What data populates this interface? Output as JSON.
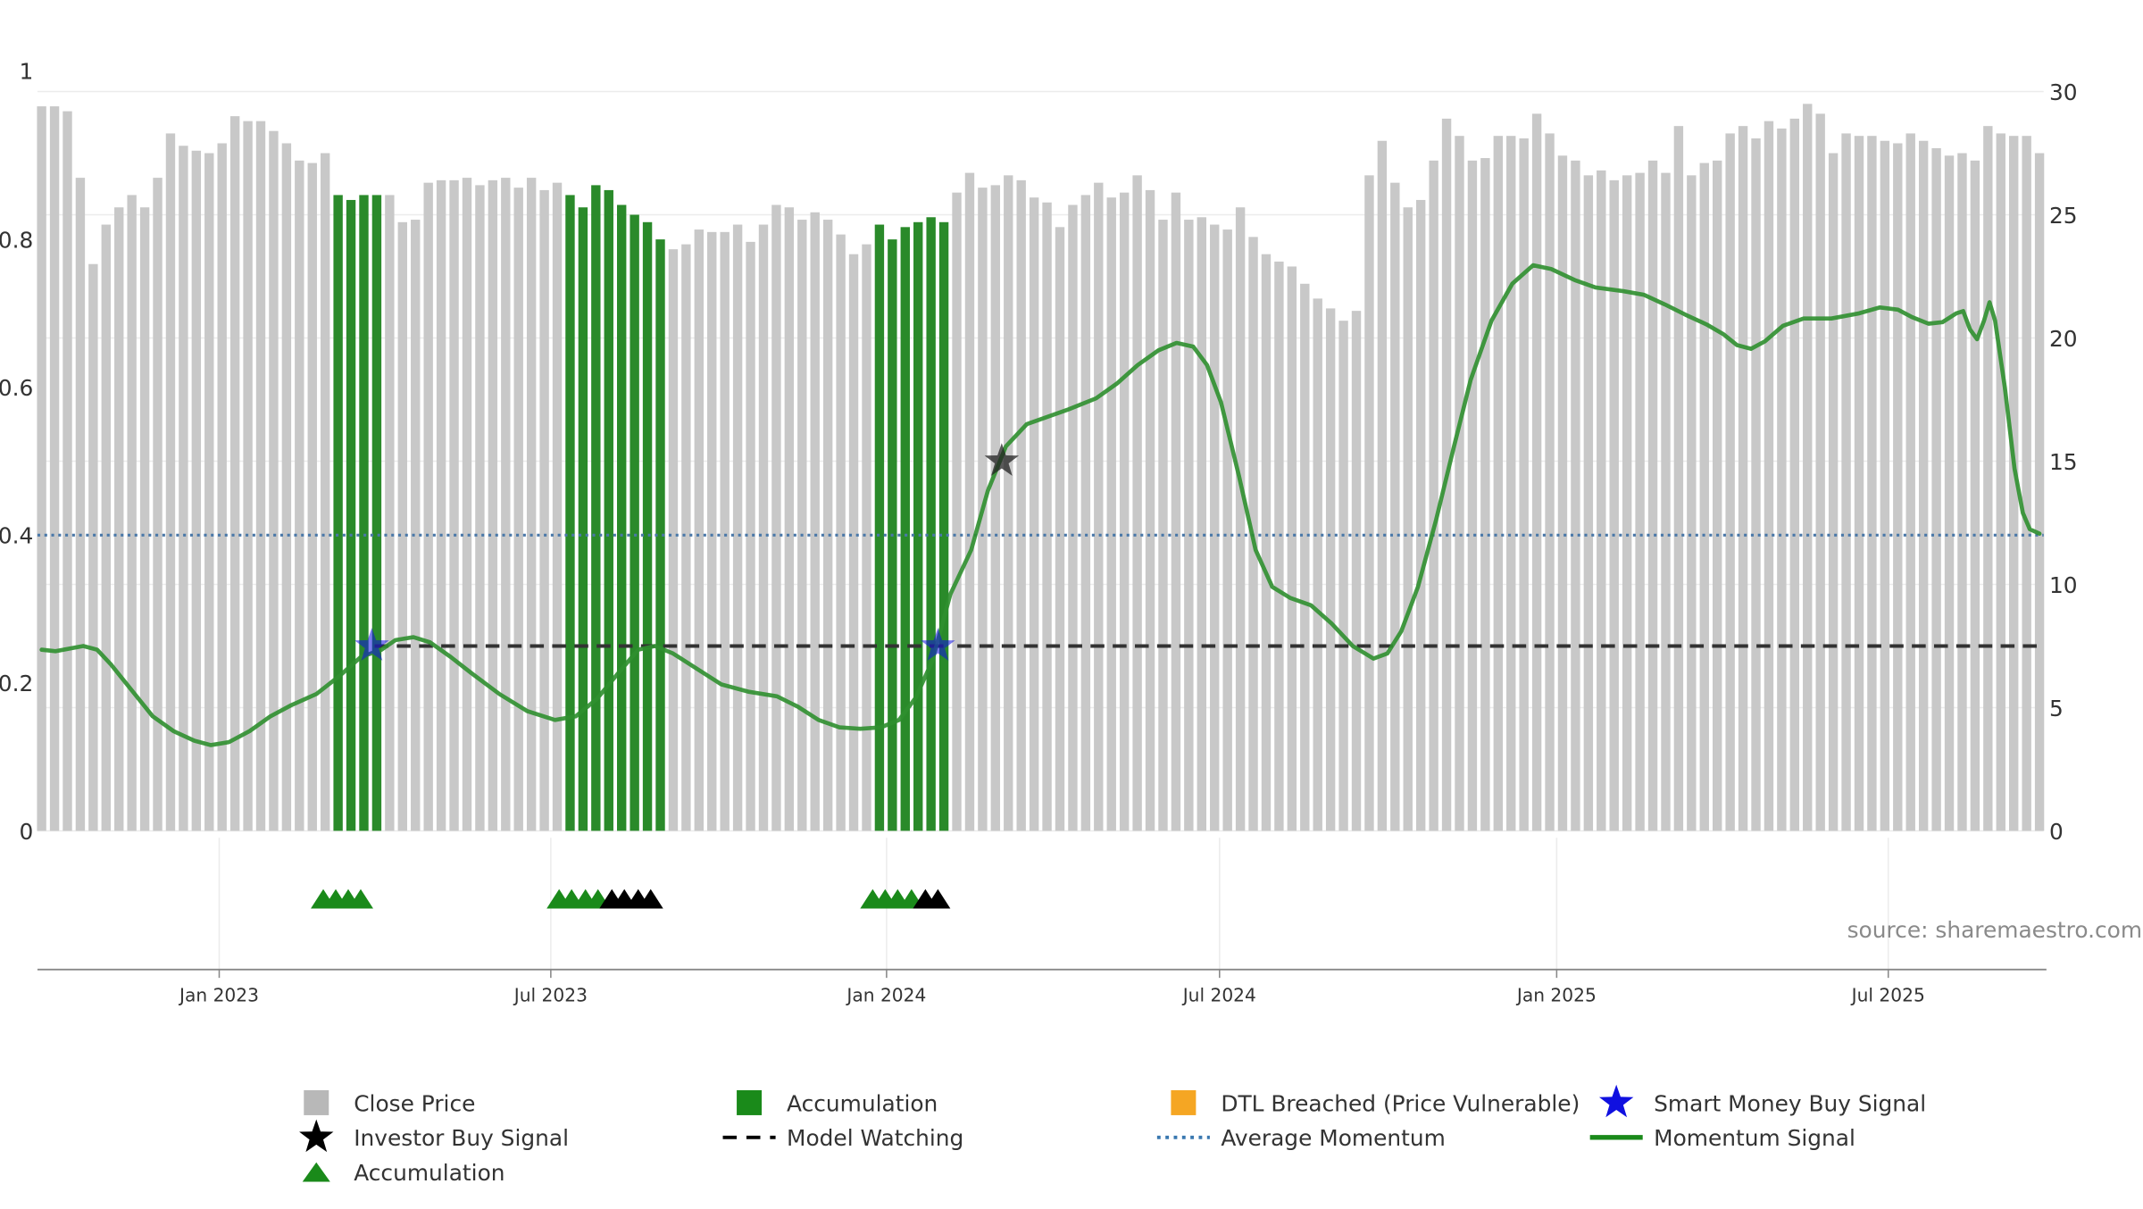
{
  "source_note": "source: sharemaestro.com",
  "chart_data": {
    "type": "bar",
    "title": "",
    "left_axis": {
      "range": [
        0,
        1
      ],
      "ticks": [
        0,
        0.2,
        0.4,
        0.6,
        0.8
      ],
      "tick_labels": [
        "0",
        "0.2",
        "0.4",
        "0.6",
        "0.8"
      ],
      "top_label": "1"
    },
    "right_axis": {
      "range": [
        0,
        30
      ],
      "ticks": [
        0,
        5,
        10,
        15,
        20,
        25,
        30
      ],
      "tick_labels": [
        "0",
        "5",
        "10",
        "15",
        "20",
        "25",
        "30"
      ]
    },
    "x_ticks": [
      "Jan 2023",
      "Jul 2023",
      "Jan 2024",
      "Jul 2024",
      "Jan 2025",
      "Jul 2025"
    ],
    "grid": true,
    "close_price": [
      29.4,
      29.4,
      29.2,
      26.5,
      23.0,
      24.6,
      25.3,
      25.8,
      25.3,
      26.5,
      28.3,
      27.8,
      27.6,
      27.5,
      27.9,
      29.0,
      28.8,
      28.8,
      28.4,
      27.9,
      27.2,
      27.1,
      27.5,
      25.8,
      25.6,
      25.8,
      25.8,
      25.8,
      24.7,
      24.8,
      26.3,
      26.4,
      26.4,
      26.5,
      26.2,
      26.4,
      26.5,
      26.1,
      26.5,
      26.0,
      26.3,
      25.8,
      25.3,
      26.2,
      26.0,
      25.4,
      25.0,
      24.7,
      24.0,
      23.6,
      23.8,
      24.4,
      24.3,
      24.3,
      24.6,
      23.9,
      24.6,
      25.4,
      25.3,
      24.8,
      25.1,
      24.8,
      24.2,
      23.4,
      23.8,
      24.6,
      24.0,
      24.5,
      24.7,
      24.9,
      24.7,
      25.9,
      26.7,
      26.1,
      26.2,
      26.6,
      26.4,
      25.7,
      25.5,
      24.5,
      25.4,
      25.8,
      26.3,
      25.7,
      25.9,
      26.6,
      26.0,
      24.8,
      25.9,
      24.8,
      24.9,
      24.6,
      24.4,
      25.3,
      24.1,
      23.4,
      23.1,
      22.9,
      22.2,
      21.6,
      21.2,
      20.7,
      21.1,
      26.6,
      28.0,
      26.3,
      25.3,
      25.6,
      27.2,
      28.9,
      28.2,
      27.2,
      27.3,
      28.2,
      28.2,
      28.1,
      29.1,
      28.3,
      27.4,
      27.2,
      26.6,
      26.8,
      26.4,
      26.6,
      26.7,
      27.2,
      26.7,
      28.6,
      26.6,
      27.1,
      27.2,
      28.3,
      28.6,
      28.1,
      28.8,
      28.5,
      28.9,
      29.5,
      29.1,
      27.5,
      28.3,
      28.2,
      28.2,
      28.0,
      27.9,
      28.3,
      28.0,
      27.7,
      27.4,
      27.5,
      27.2,
      28.6,
      28.3,
      28.2,
      28.2,
      27.5
    ],
    "accumulation_bar_indices": [
      23,
      24,
      25,
      26,
      41,
      42,
      43,
      44,
      45,
      46,
      47,
      48,
      65,
      66,
      67,
      68,
      69,
      70
    ],
    "accumulation_markers": [
      {
        "x": 233,
        "color": "green"
      },
      {
        "x": 242,
        "color": "green"
      },
      {
        "x": 251,
        "color": "green"
      },
      {
        "x": 260,
        "color": "green"
      },
      {
        "x": 403,
        "color": "green"
      },
      {
        "x": 412,
        "color": "green"
      },
      {
        "x": 422,
        "color": "green"
      },
      {
        "x": 431,
        "color": "green"
      },
      {
        "x": 441,
        "color": "black"
      },
      {
        "x": 450,
        "color": "black"
      },
      {
        "x": 460,
        "color": "black"
      },
      {
        "x": 469,
        "color": "black"
      },
      {
        "x": 629,
        "color": "green"
      },
      {
        "x": 638,
        "color": "green"
      },
      {
        "x": 647,
        "color": "green"
      },
      {
        "x": 657,
        "color": "green"
      },
      {
        "x": 667,
        "color": "black"
      },
      {
        "x": 676,
        "color": "black"
      }
    ],
    "average_momentum": 0.4,
    "model_watching_level": 0.25,
    "model_watching_segments": [
      [
        270,
        680
      ],
      [
        690,
        1472
      ]
    ],
    "momentum_signal": [
      [
        30,
        0.245
      ],
      [
        40,
        0.243
      ],
      [
        60,
        0.25
      ],
      [
        70,
        0.245
      ],
      [
        80,
        0.225
      ],
      [
        95,
        0.19
      ],
      [
        110,
        0.155
      ],
      [
        125,
        0.135
      ],
      [
        140,
        0.122
      ],
      [
        152,
        0.116
      ],
      [
        165,
        0.12
      ],
      [
        180,
        0.135
      ],
      [
        195,
        0.155
      ],
      [
        210,
        0.17
      ],
      [
        228,
        0.185
      ],
      [
        245,
        0.21
      ],
      [
        260,
        0.235
      ],
      [
        275,
        0.245
      ],
      [
        285,
        0.258
      ],
      [
        298,
        0.262
      ],
      [
        310,
        0.255
      ],
      [
        325,
        0.235
      ],
      [
        340,
        0.213
      ],
      [
        360,
        0.185
      ],
      [
        380,
        0.162
      ],
      [
        400,
        0.15
      ],
      [
        415,
        0.155
      ],
      [
        430,
        0.178
      ],
      [
        445,
        0.212
      ],
      [
        460,
        0.245
      ],
      [
        472,
        0.25
      ],
      [
        485,
        0.24
      ],
      [
        500,
        0.222
      ],
      [
        520,
        0.198
      ],
      [
        540,
        0.188
      ],
      [
        560,
        0.182
      ],
      [
        575,
        0.168
      ],
      [
        590,
        0.15
      ],
      [
        605,
        0.14
      ],
      [
        620,
        0.138
      ],
      [
        635,
        0.14
      ],
      [
        648,
        0.15
      ],
      [
        660,
        0.18
      ],
      [
        672,
        0.23
      ],
      [
        685,
        0.32
      ],
      [
        700,
        0.38
      ],
      [
        712,
        0.46
      ],
      [
        725,
        0.52
      ],
      [
        740,
        0.55
      ],
      [
        755,
        0.56
      ],
      [
        770,
        0.57
      ],
      [
        790,
        0.585
      ],
      [
        805,
        0.605
      ],
      [
        820,
        0.63
      ],
      [
        835,
        0.65
      ],
      [
        848,
        0.66
      ],
      [
        860,
        0.655
      ],
      [
        870,
        0.63
      ],
      [
        880,
        0.58
      ],
      [
        893,
        0.48
      ],
      [
        905,
        0.38
      ],
      [
        917,
        0.33
      ],
      [
        930,
        0.315
      ],
      [
        945,
        0.305
      ],
      [
        960,
        0.28
      ],
      [
        975,
        0.25
      ],
      [
        990,
        0.233
      ],
      [
        1000,
        0.24
      ],
      [
        1010,
        0.27
      ],
      [
        1022,
        0.33
      ],
      [
        1035,
        0.42
      ],
      [
        1048,
        0.52
      ],
      [
        1060,
        0.61
      ],
      [
        1075,
        0.69
      ],
      [
        1090,
        0.74
      ],
      [
        1105,
        0.765
      ],
      [
        1118,
        0.76
      ],
      [
        1135,
        0.745
      ],
      [
        1150,
        0.735
      ],
      [
        1170,
        0.73
      ],
      [
        1185,
        0.725
      ],
      [
        1200,
        0.712
      ],
      [
        1215,
        0.698
      ],
      [
        1230,
        0.685
      ],
      [
        1242,
        0.672
      ],
      [
        1252,
        0.657
      ],
      [
        1262,
        0.652
      ],
      [
        1272,
        0.662
      ],
      [
        1285,
        0.683
      ],
      [
        1300,
        0.693
      ],
      [
        1320,
        0.693
      ],
      [
        1340,
        0.7
      ],
      [
        1355,
        0.708
      ],
      [
        1368,
        0.705
      ],
      [
        1378,
        0.695
      ],
      [
        1390,
        0.686
      ],
      [
        1400,
        0.688
      ],
      [
        1410,
        0.7
      ],
      [
        1415,
        0.703
      ],
      [
        1420,
        0.678
      ],
      [
        1425,
        0.665
      ],
      [
        1430,
        0.69
      ],
      [
        1434,
        0.715
      ],
      [
        1438,
        0.69
      ],
      [
        1445,
        0.6
      ],
      [
        1452,
        0.49
      ],
      [
        1458,
        0.43
      ],
      [
        1463,
        0.408
      ],
      [
        1470,
        0.402
      ]
    ],
    "smart_money_buy_signals": [
      {
        "x": 268,
        "y": 0.25
      },
      {
        "x": 676,
        "y": 0.25
      }
    ],
    "investor_buy_signals": [
      {
        "x": 722,
        "y": 0.5
      }
    ],
    "colors": {
      "close_price": "#c8c8c8",
      "accumulation": "#2a8a2a",
      "accumulation_marker": "#1a8a1a",
      "dtl_breached": "#f5a623",
      "momentum": "#2f8f2f",
      "average_momentum": "#4a78a8",
      "model_watching": "#333333",
      "smart_money": "#1010e0",
      "investor": "#000000"
    },
    "legend": {
      "placement": "bottom",
      "items": [
        {
          "key": "close_price",
          "label": "Close Price",
          "symbol": "square",
          "color": "#b8b8b8"
        },
        {
          "key": "accumulation_bar",
          "label": "Accumulation",
          "symbol": "square",
          "color": "#1a8a1a"
        },
        {
          "key": "dtl",
          "label": "DTL Breached (Price Vulnerable)",
          "symbol": "square",
          "color": "#f5a623"
        },
        {
          "key": "smart_money",
          "label": "Smart Money Buy Signal",
          "symbol": "star",
          "color": "#1010e0"
        },
        {
          "key": "investor",
          "label": "Investor Buy Signal",
          "symbol": "star",
          "color": "#000000"
        },
        {
          "key": "model_watching",
          "label": "Model Watching",
          "symbol": "dash",
          "color": "#000000"
        },
        {
          "key": "average_momentum",
          "label": "Average Momentum",
          "symbol": "dot",
          "color": "#3a78b0"
        },
        {
          "key": "momentum",
          "label": "Momentum Signal",
          "symbol": "line",
          "color": "#1a8a1a"
        },
        {
          "key": "accumulation_marker",
          "label": "Accumulation",
          "symbol": "triangle",
          "color": "#1a8a1a"
        }
      ]
    }
  }
}
